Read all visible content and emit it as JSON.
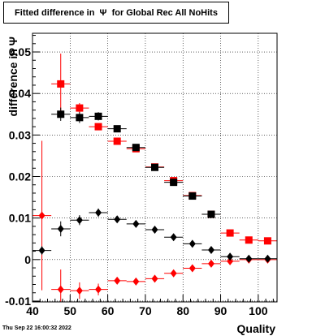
{
  "canvas": {
    "title": "Fitted difference in  Ψ  for Global Rec All NoHits",
    "timestamp": "Thu Sep 22 16:00:32 2022"
  },
  "chart_data": {
    "type": "scatter",
    "title": "Fitted difference in  Ψ  for Global Rec All NoHits",
    "xlabel": "Quality",
    "ylabel": "difference in Ψ",
    "xlim": [
      40,
      105
    ],
    "ylim": [
      -0.0102,
      0.0545
    ],
    "x_ticks": [
      40,
      50,
      60,
      70,
      80,
      90,
      100
    ],
    "x_tick_labels": [
      "40",
      "50",
      "60",
      "70",
      "80",
      "90",
      "100"
    ],
    "y_ticks": [
      -0.01,
      0,
      0.01,
      0.02,
      0.03,
      0.04,
      0.05
    ],
    "y_tick_labels": [
      "-0.01",
      "0",
      "0.01",
      "0.02",
      "0.03",
      "0.04",
      "0.05"
    ],
    "grid": true,
    "legend": "none",
    "series": [
      {
        "marker": "square",
        "color": "#ff0000",
        "points": [
          {
            "x": 47.5,
            "y": 0.0423,
            "xerr": 2.5,
            "yerr": 0.0073
          },
          {
            "x": 52.5,
            "y": 0.0365,
            "xerr": 2.5,
            "yerr": 0.0012
          },
          {
            "x": 57.5,
            "y": 0.032,
            "xerr": 2.5,
            "yerr": 0.0007
          },
          {
            "x": 62.5,
            "y": 0.0285,
            "xerr": 2.5,
            "yerr": 0.0005
          },
          {
            "x": 67.5,
            "y": 0.0267,
            "xerr": 2.5,
            "yerr": 0.0004
          },
          {
            "x": 72.5,
            "y": 0.0223,
            "xerr": 2.5,
            "yerr": 0.0004
          },
          {
            "x": 77.5,
            "y": 0.019,
            "xerr": 2.5,
            "yerr": 0.0003
          },
          {
            "x": 82.5,
            "y": 0.0154,
            "xerr": 2.5,
            "yerr": 0.0003
          },
          {
            "x": 87.5,
            "y": 0.0109,
            "xerr": 2.5,
            "yerr": 0.0003
          },
          {
            "x": 92.5,
            "y": 0.0064,
            "xerr": 2.5,
            "yerr": 0.0003
          },
          {
            "x": 97.5,
            "y": 0.0047,
            "xerr": 2.5,
            "yerr": 0.0003
          },
          {
            "x": 102.5,
            "y": 0.0045,
            "xerr": 2.5,
            "yerr": 0.0003
          }
        ]
      },
      {
        "marker": "square",
        "color": "#000000",
        "points": [
          {
            "x": 47.5,
            "y": 0.035,
            "xerr": 2.5,
            "yerr": 0.0016
          },
          {
            "x": 52.5,
            "y": 0.0342,
            "xerr": 2.5,
            "yerr": 0.0013
          },
          {
            "x": 57.5,
            "y": 0.0345,
            "xerr": 2.5,
            "yerr": 0.001
          },
          {
            "x": 62.5,
            "y": 0.0315,
            "xerr": 2.5,
            "yerr": 0.0007
          },
          {
            "x": 67.5,
            "y": 0.027,
            "xerr": 2.5,
            "yerr": 0.0005
          },
          {
            "x": 72.5,
            "y": 0.0222,
            "xerr": 2.5,
            "yerr": 0.0004
          },
          {
            "x": 77.5,
            "y": 0.0186,
            "xerr": 2.5,
            "yerr": 0.0003
          },
          {
            "x": 82.5,
            "y": 0.0153,
            "xerr": 2.5,
            "yerr": 0.0003
          },
          {
            "x": 87.5,
            "y": 0.0109,
            "xerr": 2.5,
            "yerr": 0.0003
          }
        ]
      },
      {
        "marker": "diamond",
        "color": "#ff0000",
        "points": [
          {
            "x": 42.5,
            "y": 0.0106,
            "xerr": 2.5,
            "yerr": 0.018
          },
          {
            "x": 47.5,
            "y": -0.0072,
            "xerr": 2.5,
            "yerr": 0.0048
          },
          {
            "x": 52.5,
            "y": -0.0075,
            "xerr": 2.5,
            "yerr": 0.002
          },
          {
            "x": 57.5,
            "y": -0.0072,
            "xerr": 2.5,
            "yerr": 0.0014
          },
          {
            "x": 62.5,
            "y": -0.0051,
            "xerr": 2.5,
            "yerr": 0.0008
          },
          {
            "x": 67.5,
            "y": -0.0053,
            "xerr": 2.5,
            "yerr": 0.0006
          },
          {
            "x": 72.5,
            "y": -0.0046,
            "xerr": 2.5,
            "yerr": 0.0005
          },
          {
            "x": 77.5,
            "y": -0.0033,
            "xerr": 2.5,
            "yerr": 0.0004
          },
          {
            "x": 82.5,
            "y": -0.0021,
            "xerr": 2.5,
            "yerr": 0.0004
          },
          {
            "x": 87.5,
            "y": -0.001,
            "xerr": 2.5,
            "yerr": 0.0003
          },
          {
            "x": 92.5,
            "y": -0.0004,
            "xerr": 2.5,
            "yerr": 0.0003
          },
          {
            "x": 97.5,
            "y": 0.0,
            "xerr": 2.5,
            "yerr": 0.0003
          },
          {
            "x": 102.5,
            "y": 0.0,
            "xerr": 2.5,
            "yerr": 0.0003
          }
        ]
      },
      {
        "marker": "diamond",
        "color": "#000000",
        "points": [
          {
            "x": 42.5,
            "y": 0.0022,
            "xerr": 2.5,
            "yerr": 0.001
          },
          {
            "x": 47.5,
            "y": 0.0074,
            "xerr": 2.5,
            "yerr": 0.0018
          },
          {
            "x": 52.5,
            "y": 0.0095,
            "xerr": 2.5,
            "yerr": 0.0012
          },
          {
            "x": 57.5,
            "y": 0.0113,
            "xerr": 2.5,
            "yerr": 0.001
          },
          {
            "x": 62.5,
            "y": 0.0097,
            "xerr": 2.5,
            "yerr": 0.0006
          },
          {
            "x": 67.5,
            "y": 0.0086,
            "xerr": 2.5,
            "yerr": 0.0005
          },
          {
            "x": 72.5,
            "y": 0.0072,
            "xerr": 2.5,
            "yerr": 0.0004
          },
          {
            "x": 77.5,
            "y": 0.0054,
            "xerr": 2.5,
            "yerr": 0.0004
          },
          {
            "x": 82.5,
            "y": 0.0038,
            "xerr": 2.5,
            "yerr": 0.0003
          },
          {
            "x": 87.5,
            "y": 0.0023,
            "xerr": 2.5,
            "yerr": 0.0003
          },
          {
            "x": 92.5,
            "y": 0.0007,
            "xerr": 2.5,
            "yerr": 0.0003
          },
          {
            "x": 97.5,
            "y": 0.0002,
            "xerr": 2.5,
            "yerr": 0.0003
          },
          {
            "x": 102.5,
            "y": 0.0002,
            "xerr": 2.5,
            "yerr": 0.0003
          }
        ]
      }
    ]
  }
}
